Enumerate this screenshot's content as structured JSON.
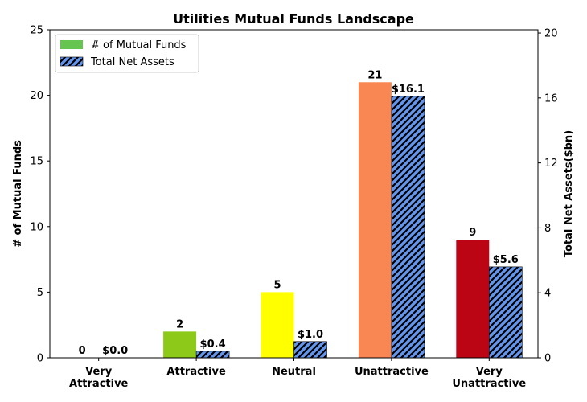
{
  "chart_data": {
    "type": "bar",
    "title": "Utilities Mutual Funds Landscape",
    "categories": [
      "Very\nAttractive",
      "Attractive",
      "Neutral",
      "Unattractive",
      "Very\nUnattractive"
    ],
    "ylabel_left": "# of Mutual Funds",
    "ylabel_right": "Total Net Assets($bn)",
    "ylim_left": [
      0,
      25
    ],
    "yticks_left": [
      0,
      5,
      10,
      15,
      20,
      25
    ],
    "ylim_right": [
      0,
      20.2
    ],
    "yticks_right": [
      0,
      4,
      8,
      12,
      16,
      20
    ],
    "grid": false,
    "legend_position": "top-left",
    "series": [
      {
        "name": "# of Mutual Funds",
        "axis": "left",
        "values": [
          0,
          2,
          5,
          21,
          9
        ],
        "labels": [
          "0",
          "2",
          "5",
          "21",
          "9"
        ],
        "colors": [
          "#6cc24a",
          "#8cc919",
          "#ffff00",
          "#f88754",
          "#bb0515"
        ],
        "legend_color": "#66c451"
      },
      {
        "name": "Total Net Assets",
        "axis": "right",
        "values": [
          0.0,
          0.4,
          1.0,
          16.1,
          5.6
        ],
        "labels": [
          "$0.0",
          "$0.4",
          "$1.0",
          "$16.1",
          "$5.6"
        ],
        "color": "#6495ed",
        "hatch": "////"
      }
    ]
  }
}
